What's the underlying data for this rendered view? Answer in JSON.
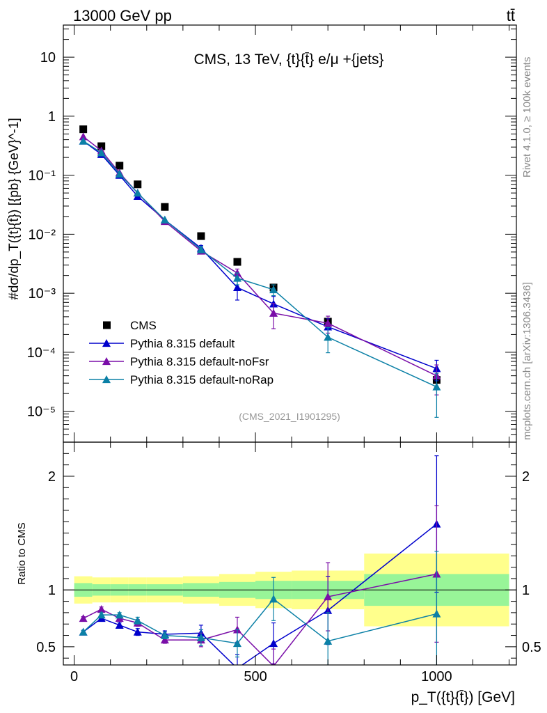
{
  "header": {
    "energy_label": "13000 GeV pp",
    "process_label": "tt̄"
  },
  "side_labels": {
    "rivet": "Rivet 4.1.0, ≥ 100k events",
    "mcplots": "mcplots.cern.ch [arXiv:1306.3436]"
  },
  "chart_data": {
    "type": "line",
    "title": "CMS, 13 TeV, {t}{t̄} e/μ +{jets}",
    "analysis_tag": "(CMS_2021_I1901295)",
    "xlabel": "p_T({t}{t̄}) [GeV]",
    "ylabel": "#dσ/dp_T({t}{t̄}) [{pb} {GeV}^-1]",
    "ratio_ylabel": "Ratio to CMS",
    "xlim": [
      -30,
      1220
    ],
    "ylim_main": [
      3e-06,
      35
    ],
    "ylim_ratio": [
      0.34,
      2.3
    ],
    "x_ticks": [
      0,
      500,
      1000
    ],
    "main_y_ticks": [
      {
        "v": 10,
        "label": "10"
      },
      {
        "v": 1,
        "label": "1"
      },
      {
        "v": 0.1,
        "label": "10⁻¹"
      },
      {
        "v": 0.01,
        "label": "10⁻²"
      },
      {
        "v": 0.001,
        "label": "10⁻³"
      },
      {
        "v": 0.0001,
        "label": "10⁻⁴"
      },
      {
        "v": 1e-05,
        "label": "10⁻⁵"
      }
    ],
    "ratio_y_ticks": [
      0.5,
      1,
      2
    ],
    "bins": [
      {
        "lo": 0,
        "hi": 50
      },
      {
        "lo": 50,
        "hi": 100
      },
      {
        "lo": 100,
        "hi": 150
      },
      {
        "lo": 150,
        "hi": 200
      },
      {
        "lo": 200,
        "hi": 300
      },
      {
        "lo": 300,
        "hi": 400
      },
      {
        "lo": 400,
        "hi": 500
      },
      {
        "lo": 500,
        "hi": 600
      },
      {
        "lo": 600,
        "hi": 800
      },
      {
        "lo": 800,
        "hi": 1200
      }
    ],
    "x": [
      25,
      75,
      125,
      175,
      250,
      350,
      450,
      550,
      700,
      1000
    ],
    "band": {
      "inner": [
        0.06,
        0.05,
        0.05,
        0.05,
        0.05,
        0.06,
        0.07,
        0.08,
        0.08,
        0.14
      ],
      "outer": [
        0.12,
        0.11,
        0.11,
        0.11,
        0.11,
        0.12,
        0.14,
        0.16,
        0.17,
        0.32
      ]
    },
    "series": [
      {
        "name": "CMS",
        "color": "#000000",
        "marker": "square",
        "values": [
          0.6,
          0.31,
          0.145,
          0.07,
          0.029,
          0.0093,
          0.0034,
          0.00125,
          0.00033,
          3.4e-05
        ]
      },
      {
        "name": "Pythia 8.315 default",
        "color": "#0000cc",
        "marker": "triangle",
        "values": [
          0.38,
          0.225,
          0.1,
          0.044,
          0.0175,
          0.0058,
          0.00125,
          0.00066,
          0.00027,
          5.3e-05
        ],
        "ratio": [
          0.63,
          0.75,
          0.69,
          0.63,
          0.61,
          0.62,
          0.31,
          0.53,
          0.82,
          1.58
        ],
        "ratio_err": [
          0.015,
          0.02,
          0.02,
          0.03,
          0.03,
          0.07,
          0.12,
          0.18,
          0.3,
          0.6
        ]
      },
      {
        "name": "Pythia 8.315 default-noFsr",
        "color": "#7a0ea8",
        "marker": "triangle",
        "values": [
          0.45,
          0.26,
          0.11,
          0.05,
          0.0165,
          0.0052,
          0.0022,
          0.00046,
          0.00031,
          4e-05
        ],
        "ratio": [
          0.75,
          0.83,
          0.75,
          0.71,
          0.56,
          0.56,
          0.65,
          0.33,
          0.94,
          1.14
        ],
        "ratio_err": [
          0.015,
          0.02,
          0.02,
          0.03,
          0.03,
          0.06,
          0.11,
          0.15,
          0.3,
          0.6
        ]
      },
      {
        "name": "Pythia 8.315 default-noRap",
        "color": "#0b80a6",
        "marker": "triangle",
        "values": [
          0.38,
          0.24,
          0.105,
          0.05,
          0.0175,
          0.0055,
          0.0018,
          0.00115,
          0.00018,
          2.6e-05
        ],
        "ratio": [
          0.63,
          0.78,
          0.78,
          0.73,
          0.6,
          0.58,
          0.53,
          0.92,
          0.55,
          0.79
        ],
        "ratio_err": [
          0.015,
          0.02,
          0.02,
          0.03,
          0.03,
          0.07,
          0.12,
          0.19,
          0.25,
          0.55
        ]
      }
    ]
  }
}
